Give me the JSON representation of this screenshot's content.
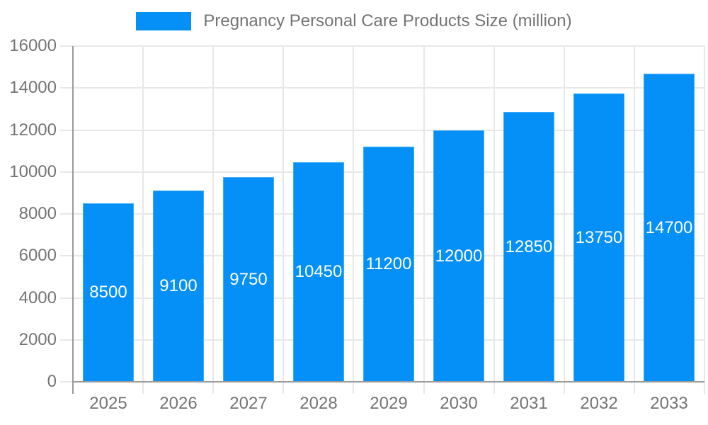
{
  "legend": {
    "label": "Pregnancy Personal Care Products Size (million)"
  },
  "chart_data": {
    "type": "bar",
    "title": "Pregnancy Personal Care Products Size (million)",
    "categories": [
      "2025",
      "2026",
      "2027",
      "2028",
      "2029",
      "2030",
      "2031",
      "2032",
      "2033"
    ],
    "values": [
      8500,
      9100,
      9750,
      10450,
      11200,
      12000,
      12850,
      13750,
      14700
    ],
    "series": [
      {
        "name": "Pregnancy Personal Care Products Size (million)",
        "values": [
          8500,
          9100,
          9750,
          10450,
          11200,
          12000,
          12850,
          13750,
          14700
        ]
      }
    ],
    "xlabel": "",
    "ylabel": "",
    "ylim": [
      0,
      16000
    ],
    "ytick_step": 2000,
    "ytick_labels": [
      "0",
      "2000",
      "4000",
      "6000",
      "8000",
      "10000",
      "12000",
      "14000",
      "16000"
    ],
    "grid": true,
    "legend_position": "top",
    "value_labels_inside_bars": true,
    "colors": {
      "bar": "#0590f8",
      "bar_value_text": "#ffffff",
      "axis_text": "#747474",
      "gridline": "#e8e8e8",
      "axis_line": "#9a9a9a",
      "background": "#ffffff"
    }
  }
}
